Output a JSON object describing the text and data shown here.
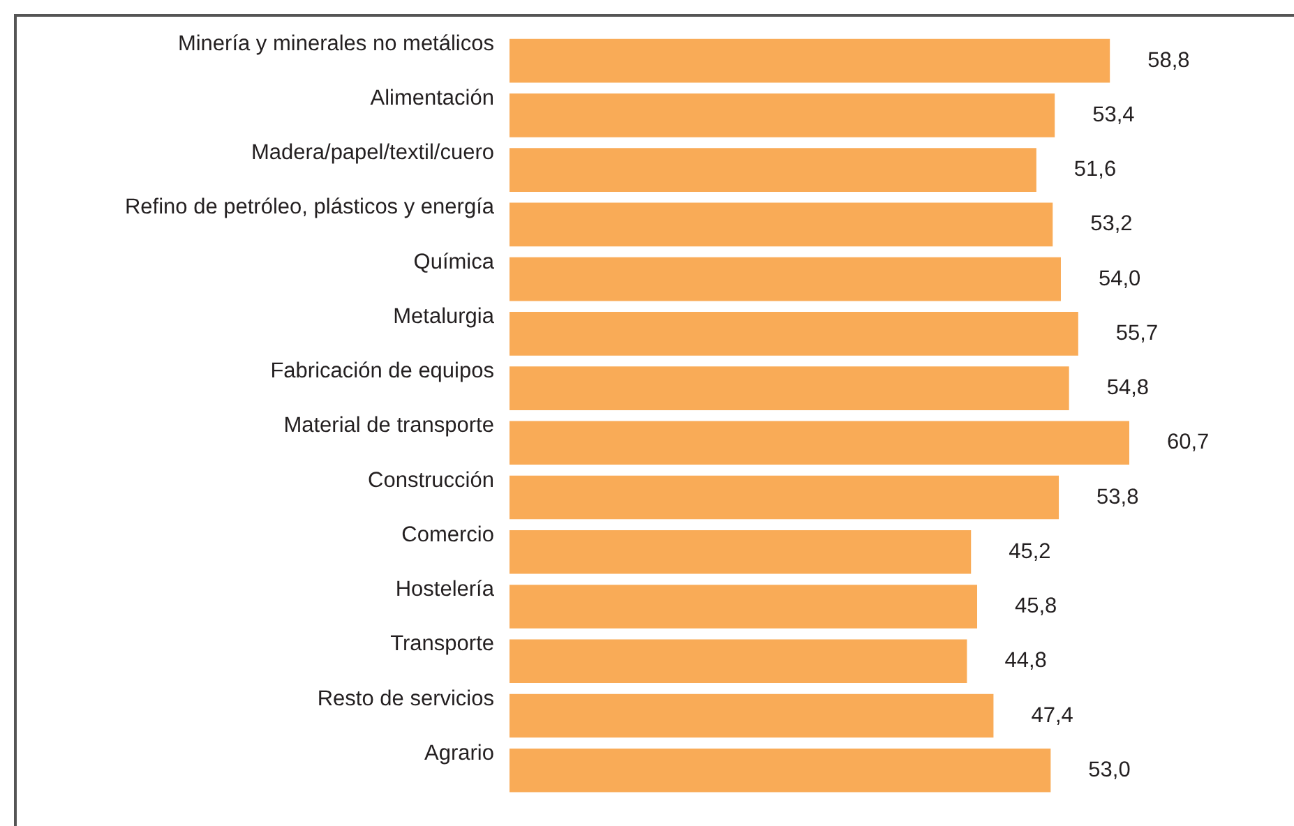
{
  "chart_data": {
    "type": "bar",
    "orientation": "horizontal",
    "categories": [
      "Minería y minerales no metálicos",
      "Alimentación",
      "Madera/papel/textil/cuero",
      "Refino de petróleo, plásticos y energía",
      "Química",
      "Metalurgia",
      "Fabricación de equipos",
      "Material de transporte",
      "Construcción",
      "Comercio",
      "Hostelería",
      "Transporte",
      "Resto de servicios",
      "Agrario"
    ],
    "values": [
      58.8,
      53.4,
      51.6,
      53.2,
      54.0,
      55.7,
      54.8,
      60.7,
      53.8,
      45.2,
      45.8,
      44.8,
      47.4,
      53.0
    ],
    "value_labels": [
      "58,8",
      "53,4",
      "51,6",
      "53,2",
      "54,0",
      "55,7",
      "54,8",
      "60,7",
      "53,8",
      "45,2",
      "45,8",
      "44,8",
      "47,4",
      "53,0"
    ],
    "color": "#f9ab57"
  }
}
